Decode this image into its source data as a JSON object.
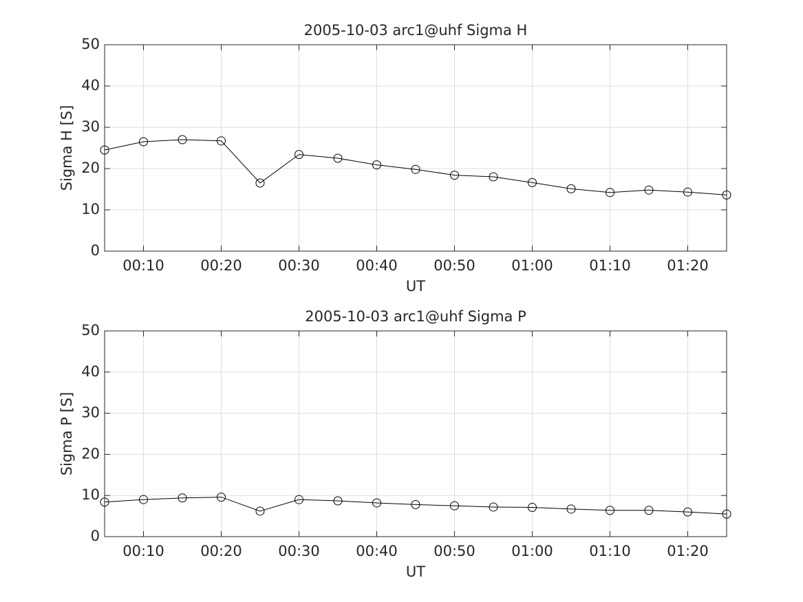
{
  "chart_data": [
    {
      "type": "line",
      "title": "2005-10-03  arc1@uhf Sigma H",
      "x_label": "UT",
      "y_label": "Sigma H [S]",
      "x": [
        5,
        10,
        15,
        20,
        25,
        30,
        35,
        40,
        45,
        50,
        55,
        60,
        65,
        70,
        75,
        80,
        85
      ],
      "series": [
        {
          "color": "#000000",
          "values": [
            24.5,
            26.5,
            27.0,
            26.7,
            16.5,
            23.4,
            22.5,
            20.9,
            19.8,
            18.4,
            18.0,
            16.6,
            15.1,
            14.2,
            14.8,
            14.3,
            13.6
          ]
        }
      ],
      "xlim": [
        5,
        85
      ],
      "xticks": [
        {
          "value": 10,
          "label": "00:10"
        },
        {
          "value": 20,
          "label": "00:20"
        },
        {
          "value": 30,
          "label": "00:30"
        },
        {
          "value": 40,
          "label": "00:40"
        },
        {
          "value": 50,
          "label": "00:50"
        },
        {
          "value": 60,
          "label": "01:00"
        },
        {
          "value": 70,
          "label": "01:10"
        },
        {
          "value": 80,
          "label": "01:20"
        }
      ],
      "ylim": [
        0,
        50
      ],
      "yticks": [
        0,
        10,
        20,
        30,
        40,
        50
      ],
      "grid": true
    },
    {
      "type": "line",
      "title": "2005-10-03  arc1@uhf Sigma P",
      "x_label": "UT",
      "y_label": "Sigma P [S]",
      "x": [
        5,
        10,
        15,
        20,
        25,
        30,
        35,
        40,
        45,
        50,
        55,
        60,
        65,
        70,
        75,
        80,
        85
      ],
      "series": [
        {
          "color": "#000000",
          "values": [
            8.4,
            9.0,
            9.4,
            9.6,
            6.2,
            9.0,
            8.7,
            8.2,
            7.8,
            7.5,
            7.2,
            7.1,
            6.7,
            6.4,
            6.4,
            6.0,
            5.5
          ]
        }
      ],
      "xlim": [
        5,
        85
      ],
      "xticks": [
        {
          "value": 10,
          "label": "00:10"
        },
        {
          "value": 20,
          "label": "00:20"
        },
        {
          "value": 30,
          "label": "00:30"
        },
        {
          "value": 40,
          "label": "00:40"
        },
        {
          "value": 50,
          "label": "00:50"
        },
        {
          "value": 60,
          "label": "01:00"
        },
        {
          "value": 70,
          "label": "01:10"
        },
        {
          "value": 80,
          "label": "01:20"
        }
      ],
      "ylim": [
        0,
        50
      ],
      "yticks": [
        0,
        10,
        20,
        30,
        40,
        50
      ],
      "grid": true
    }
  ]
}
